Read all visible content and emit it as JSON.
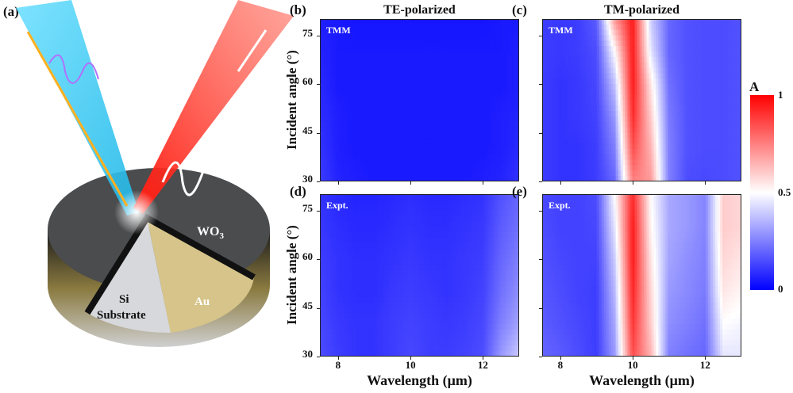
{
  "panel_a": {
    "label": "(a)",
    "wo3": "WO",
    "wo3_sub": "3",
    "si": "Si",
    "substrate": "Substrate",
    "au": "Au"
  },
  "colors": {
    "low": "#0000ff",
    "mid": "#ffffff",
    "high": "#ff0000"
  },
  "chart_data": [
    {
      "type": "heatmap",
      "panel": "(b)",
      "title": "TE-polarized",
      "inset": "TMM",
      "xlabel": "",
      "ylabel": "Incident angle (°)",
      "xlim": [
        7.5,
        13
      ],
      "ylim": [
        30,
        80
      ],
      "xticks": [
        "8",
        "10",
        "12"
      ],
      "yticks": [
        "30",
        "45",
        "60",
        "75"
      ],
      "x": [
        7.5,
        8,
        8.5,
        9,
        9.5,
        10,
        10.5,
        11,
        11.5,
        12,
        12.5,
        13
      ],
      "y": [
        30,
        40,
        50,
        60,
        70,
        80
      ],
      "values": [
        [
          0.12,
          0.07,
          0.06,
          0.05,
          0.05,
          0.05,
          0.05,
          0.05,
          0.05,
          0.06,
          0.07,
          0.1
        ],
        [
          0.1,
          0.06,
          0.05,
          0.05,
          0.05,
          0.05,
          0.05,
          0.05,
          0.05,
          0.05,
          0.06,
          0.08
        ],
        [
          0.09,
          0.06,
          0.05,
          0.05,
          0.05,
          0.05,
          0.05,
          0.05,
          0.05,
          0.05,
          0.06,
          0.07
        ],
        [
          0.08,
          0.05,
          0.05,
          0.05,
          0.05,
          0.05,
          0.05,
          0.05,
          0.05,
          0.05,
          0.05,
          0.06
        ],
        [
          0.07,
          0.05,
          0.05,
          0.05,
          0.05,
          0.05,
          0.05,
          0.05,
          0.05,
          0.05,
          0.05,
          0.06
        ],
        [
          0.06,
          0.05,
          0.04,
          0.04,
          0.04,
          0.04,
          0.04,
          0.04,
          0.04,
          0.04,
          0.05,
          0.05
        ]
      ]
    },
    {
      "type": "heatmap",
      "panel": "(c)",
      "title": "TM-polarized",
      "inset": "TMM",
      "xlabel": "",
      "ylabel": "",
      "xlim": [
        7.5,
        13
      ],
      "ylim": [
        30,
        80
      ],
      "xticks": [
        "8",
        "10",
        "12"
      ],
      "yticks": [
        "30",
        "45",
        "60",
        "75"
      ],
      "x": [
        7.5,
        8,
        8.5,
        9,
        9.5,
        10,
        10.5,
        11,
        11.5,
        12,
        12.5,
        13
      ],
      "y": [
        30,
        40,
        50,
        60,
        70,
        80
      ],
      "values": [
        [
          0.12,
          0.1,
          0.1,
          0.12,
          0.2,
          0.75,
          0.7,
          0.25,
          0.15,
          0.14,
          0.15,
          0.16
        ],
        [
          0.12,
          0.1,
          0.1,
          0.12,
          0.25,
          0.85,
          0.65,
          0.25,
          0.16,
          0.15,
          0.15,
          0.16
        ],
        [
          0.12,
          0.1,
          0.11,
          0.13,
          0.3,
          0.92,
          0.6,
          0.24,
          0.16,
          0.15,
          0.15,
          0.16
        ],
        [
          0.12,
          0.1,
          0.11,
          0.14,
          0.38,
          0.95,
          0.55,
          0.22,
          0.16,
          0.15,
          0.15,
          0.16
        ],
        [
          0.12,
          0.11,
          0.12,
          0.15,
          0.5,
          0.95,
          0.45,
          0.2,
          0.16,
          0.15,
          0.15,
          0.16
        ],
        [
          0.12,
          0.11,
          0.12,
          0.18,
          0.7,
          0.95,
          0.4,
          0.2,
          0.16,
          0.15,
          0.15,
          0.16
        ]
      ]
    },
    {
      "type": "heatmap",
      "panel": "(d)",
      "title": "",
      "inset": "Expt.",
      "xlabel": "Wavelength (μm)",
      "ylabel": "Incident angle (°)",
      "xlim": [
        7.5,
        13
      ],
      "ylim": [
        30,
        80
      ],
      "xticks": [
        "8",
        "10",
        "12"
      ],
      "yticks": [
        "30",
        "45",
        "60",
        "75"
      ],
      "x": [
        7.5,
        8,
        8.5,
        9,
        9.5,
        10,
        10.5,
        11,
        11.5,
        12,
        12.5,
        13
      ],
      "y": [
        30,
        40,
        50,
        60,
        70,
        80
      ],
      "values": [
        [
          0.15,
          0.12,
          0.1,
          0.1,
          0.12,
          0.14,
          0.12,
          0.12,
          0.13,
          0.15,
          0.3,
          0.4
        ],
        [
          0.14,
          0.11,
          0.1,
          0.1,
          0.12,
          0.13,
          0.12,
          0.11,
          0.12,
          0.14,
          0.25,
          0.32
        ],
        [
          0.13,
          0.1,
          0.09,
          0.09,
          0.11,
          0.12,
          0.11,
          0.1,
          0.11,
          0.13,
          0.22,
          0.28
        ],
        [
          0.12,
          0.1,
          0.09,
          0.09,
          0.1,
          0.11,
          0.1,
          0.1,
          0.11,
          0.12,
          0.2,
          0.25
        ],
        [
          0.11,
          0.09,
          0.08,
          0.08,
          0.09,
          0.1,
          0.09,
          0.09,
          0.1,
          0.11,
          0.18,
          0.22
        ],
        [
          0.1,
          0.08,
          0.07,
          0.07,
          0.08,
          0.09,
          0.08,
          0.08,
          0.09,
          0.1,
          0.16,
          0.2
        ]
      ]
    },
    {
      "type": "heatmap",
      "panel": "(e)",
      "title": "",
      "inset": "Expt.",
      "xlabel": "Wavelength (μm)",
      "ylabel": "",
      "xlim": [
        7.5,
        13
      ],
      "ylim": [
        30,
        80
      ],
      "xticks": [
        "8",
        "10",
        "12"
      ],
      "yticks": [
        "30",
        "45",
        "60",
        "75"
      ],
      "x": [
        7.5,
        8,
        8.5,
        9,
        9.5,
        10,
        10.5,
        11,
        11.5,
        12,
        12.5,
        13
      ],
      "y": [
        30,
        40,
        50,
        60,
        70,
        80
      ],
      "values": [
        [
          0.2,
          0.18,
          0.15,
          0.12,
          0.3,
          0.85,
          0.65,
          0.25,
          0.22,
          0.2,
          0.45,
          0.45
        ],
        [
          0.18,
          0.16,
          0.14,
          0.12,
          0.33,
          0.9,
          0.6,
          0.28,
          0.25,
          0.22,
          0.5,
          0.48
        ],
        [
          0.17,
          0.15,
          0.13,
          0.12,
          0.36,
          0.93,
          0.58,
          0.3,
          0.27,
          0.24,
          0.55,
          0.52
        ],
        [
          0.16,
          0.14,
          0.13,
          0.13,
          0.4,
          0.95,
          0.55,
          0.32,
          0.28,
          0.25,
          0.58,
          0.55
        ],
        [
          0.15,
          0.13,
          0.13,
          0.14,
          0.45,
          0.95,
          0.52,
          0.33,
          0.3,
          0.26,
          0.6,
          0.58
        ],
        [
          0.14,
          0.13,
          0.13,
          0.15,
          0.5,
          0.92,
          0.5,
          0.33,
          0.3,
          0.26,
          0.6,
          0.58
        ]
      ]
    }
  ],
  "colorbar": {
    "title": "A",
    "ticks": [
      "0",
      "0.5",
      "1"
    ],
    "range": [
      0,
      1
    ]
  }
}
